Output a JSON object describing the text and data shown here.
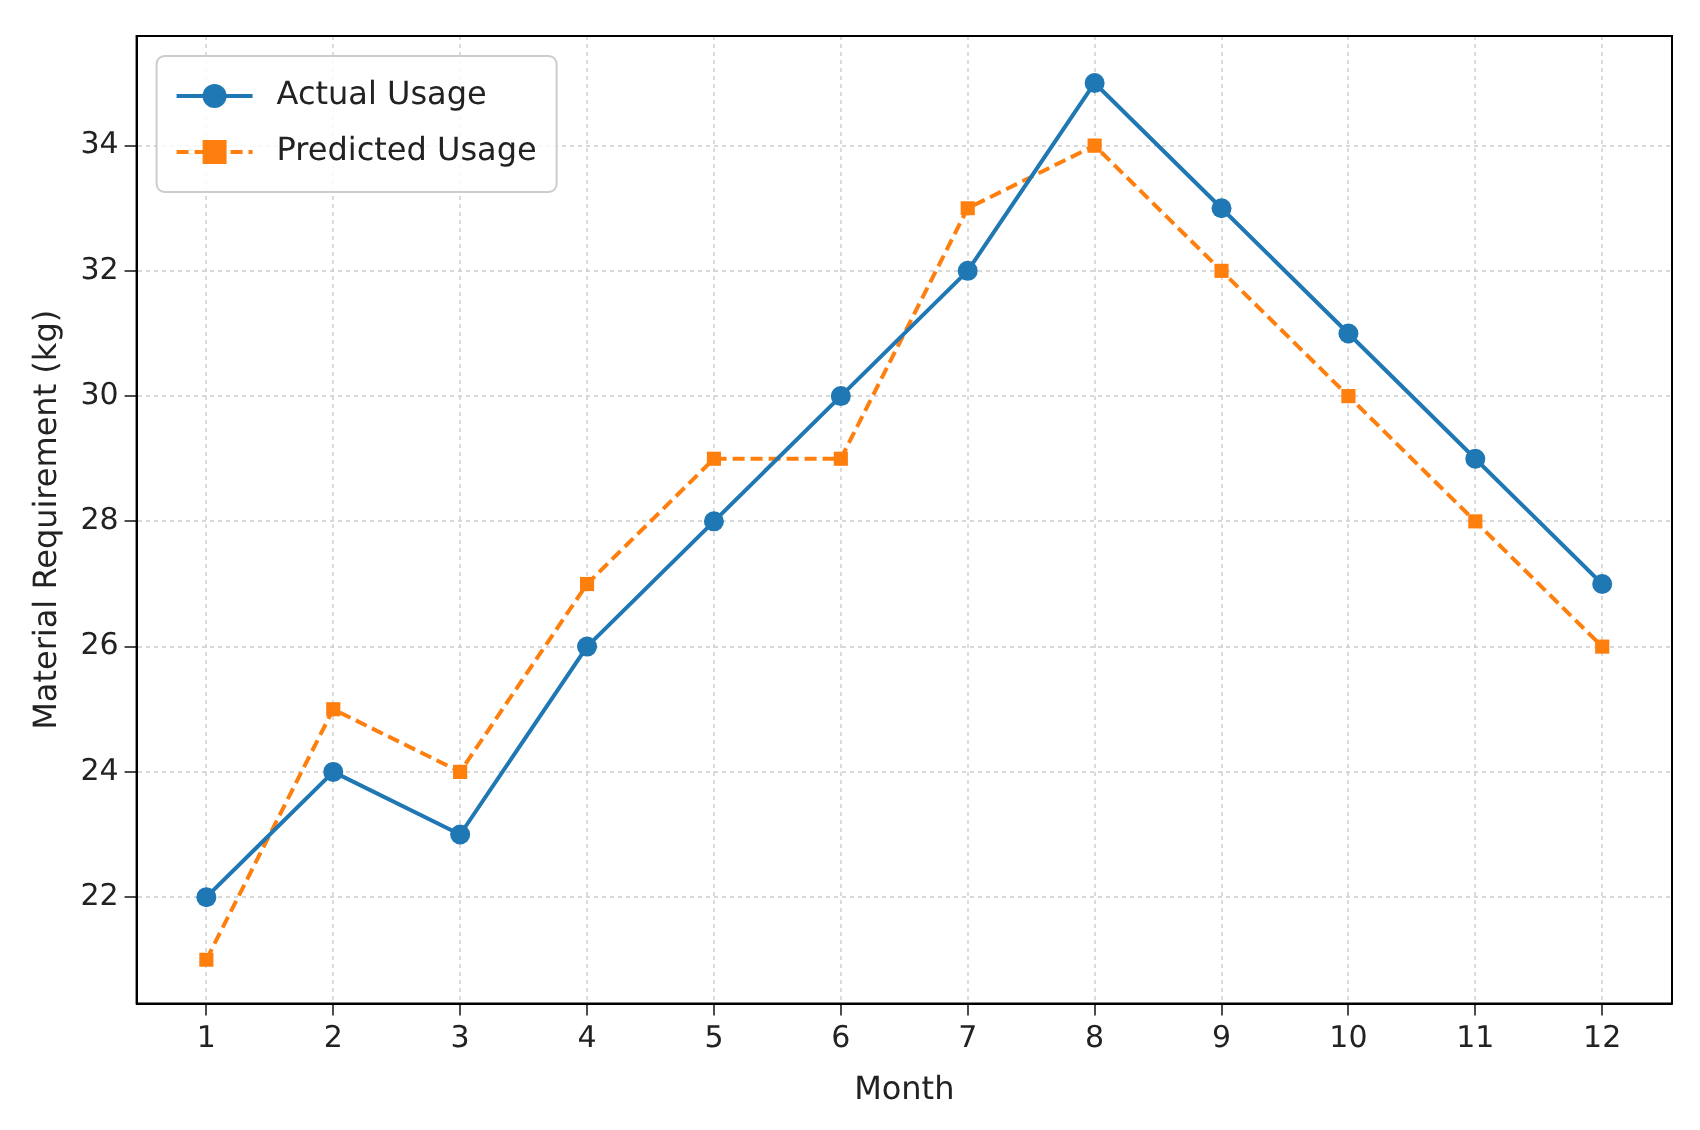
{
  "chart_data": {
    "type": "line",
    "xlabel": "Month",
    "ylabel": "Material Requirement (kg)",
    "x": [
      1,
      2,
      3,
      4,
      5,
      6,
      7,
      8,
      9,
      10,
      11,
      12
    ],
    "series": [
      {
        "name": "Actual Usage",
        "color": "#1f77b4",
        "marker": "circle",
        "line_style": "solid",
        "values": [
          22,
          24,
          23,
          26,
          28,
          30,
          32,
          35,
          33,
          31,
          29,
          27
        ]
      },
      {
        "name": "Predicted Usage",
        "color": "#ff7f0e",
        "marker": "square",
        "line_style": "dashed",
        "values": [
          21,
          25,
          24,
          27,
          29,
          29,
          33,
          34,
          32,
          30,
          28,
          26
        ]
      }
    ],
    "xlim": [
      0.45,
      12.55
    ],
    "xticks": [
      1,
      2,
      3,
      4,
      5,
      6,
      7,
      8,
      9,
      10,
      11,
      12
    ],
    "ylim": [
      20.3,
      35.75
    ],
    "yticks": [
      22,
      24,
      26,
      28,
      30,
      32,
      34
    ],
    "grid": true,
    "legend": "top left"
  }
}
